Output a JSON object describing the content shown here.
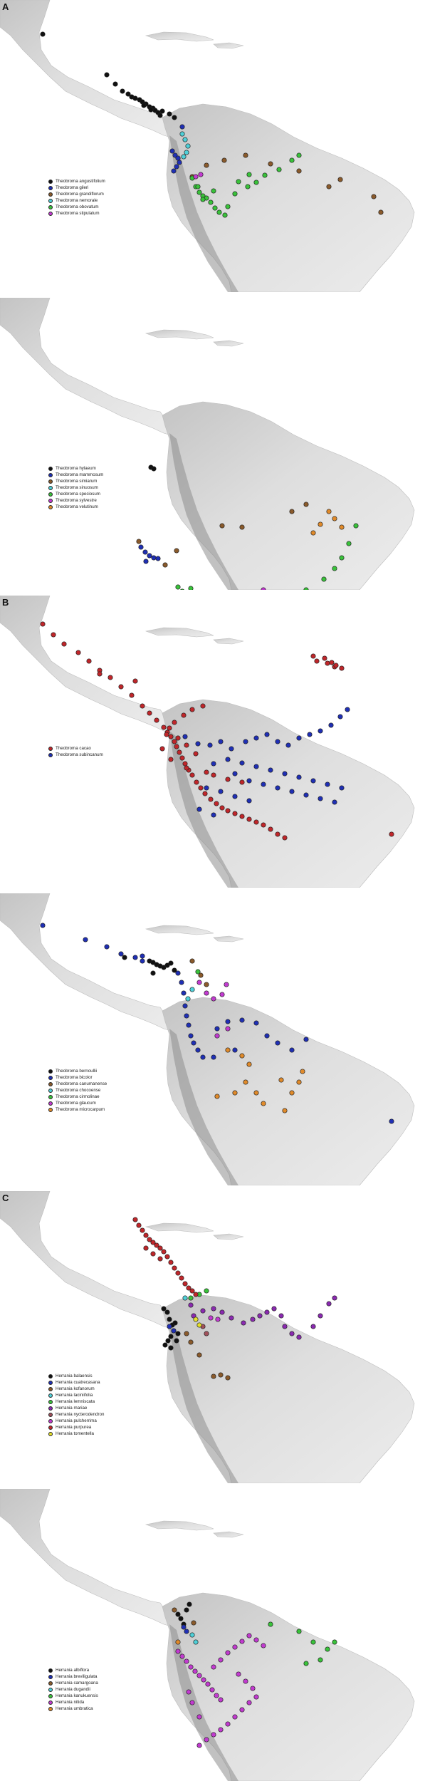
{
  "panels": [
    {
      "id": "p1",
      "letter": "A",
      "species": [
        {
          "label": "Theobroma angustifolium",
          "color": "#111111"
        },
        {
          "label": "Theobroma gileri",
          "color": "#1f2fb5"
        },
        {
          "label": "Theobroma grandiflorum",
          "color": "#8a5a2b"
        },
        {
          "label": "Theobroma nemorale",
          "color": "#4fd0d8"
        },
        {
          "label": "Theobroma obovatum",
          "color": "#39c23a"
        },
        {
          "label": "Theobroma stipulatum",
          "color": "#c23ad0"
        }
      ]
    },
    {
      "id": "p2",
      "letter": "",
      "species": [
        {
          "label": "Theobroma hylaeum",
          "color": "#111111"
        },
        {
          "label": "Theobroma mammosum",
          "color": "#1f2fb5"
        },
        {
          "label": "Theobroma simiarum",
          "color": "#8a5a2b"
        },
        {
          "label": "Theobroma sinuosum",
          "color": "#4fd0d8"
        },
        {
          "label": "Theobroma speciosum",
          "color": "#39c23a"
        },
        {
          "label": "Theobroma sylvestre",
          "color": "#c23ad0"
        },
        {
          "label": "Theobroma velutinum",
          "color": "#e08a2a"
        }
      ]
    },
    {
      "id": "p3",
      "letter": "B",
      "species": [
        {
          "label": "Theobroma cacao",
          "color": "#c0262a"
        },
        {
          "label": "Theobroma subincanum",
          "color": "#1f2fb5"
        }
      ]
    },
    {
      "id": "p4",
      "letter": "",
      "species": [
        {
          "label": "Theobroma bernoullii",
          "color": "#111111"
        },
        {
          "label": "Theobroma bicolor",
          "color": "#1f2fb5"
        },
        {
          "label": "Theobroma canumanense",
          "color": "#8a5a2b"
        },
        {
          "label": "Theobroma chocoense",
          "color": "#4fd0d8"
        },
        {
          "label": "Theobroma cirmolinae",
          "color": "#39c23a"
        },
        {
          "label": "Theobroma glaucum",
          "color": "#c23ad0"
        },
        {
          "label": "Theobroma microcarpum",
          "color": "#e08a2a"
        }
      ]
    },
    {
      "id": "p5",
      "letter": "C",
      "species": [
        {
          "label": "Herrania balaensis",
          "color": "#111111"
        },
        {
          "label": "Herrania cuatrecasana",
          "color": "#1f2fb5"
        },
        {
          "label": "Herrania kofanorum",
          "color": "#8a5a2b"
        },
        {
          "label": "Herrania laciniifolia",
          "color": "#4fd0d8"
        },
        {
          "label": "Herrania lemniscata",
          "color": "#39c23a"
        },
        {
          "label": "Herrania mariae",
          "color": "#8a2ab0"
        },
        {
          "label": "Herrania nycterodendron",
          "color": "#a0505a"
        },
        {
          "label": "Herrania pulcherrima",
          "color": "#c23ad0"
        },
        {
          "label": "Herrania purpurea",
          "color": "#c0262a"
        },
        {
          "label": "Herrania tomentella",
          "color": "#e6e02a"
        }
      ]
    },
    {
      "id": "p6",
      "letter": "",
      "species": [
        {
          "label": "Herrania albiflora",
          "color": "#111111"
        },
        {
          "label": "Herrania breviligulata",
          "color": "#1f2fb5"
        },
        {
          "label": "Herrania camargoana",
          "color": "#8a5a2b"
        },
        {
          "label": "Herrania dugandii",
          "color": "#4fd0d8"
        },
        {
          "label": "Herrania kanukuensis",
          "color": "#39c23a"
        },
        {
          "label": "Herrania nitida",
          "color": "#c23ad0"
        },
        {
          "label": "Herrania umbratica",
          "color": "#e08a2a"
        }
      ]
    }
  ]
}
